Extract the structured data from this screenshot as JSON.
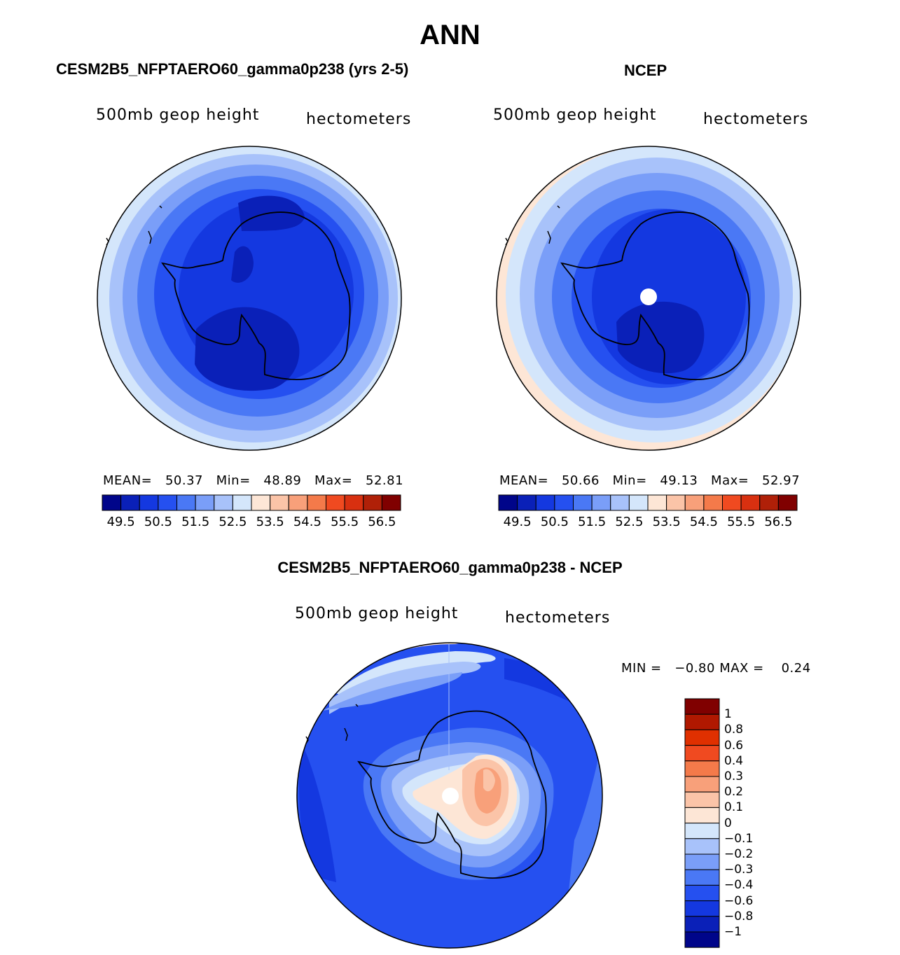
{
  "title": "ANN",
  "panels": [
    {
      "header": "CESM2B5_NFPTAERO60_gamma0p238 (yrs 2-5)",
      "variable": "500mb geop height",
      "units": "hectometers",
      "stats": {
        "mean_label": "MEAN=",
        "mean": "50.37",
        "min_label": "Min=",
        "min": "48.89",
        "max_label": "Max=",
        "max": "52.81"
      },
      "colorbar_ticks": [
        "49.5",
        "50.5",
        "51.5",
        "52.5",
        "53.5",
        "54.5",
        "55.5",
        "56.5"
      ]
    },
    {
      "header": "NCEP",
      "variable": "500mb geop height",
      "units": "hectometers",
      "stats": {
        "mean_label": "MEAN=",
        "mean": "50.66",
        "min_label": "Min=",
        "min": "49.13",
        "max_label": "Max=",
        "max": "52.97"
      },
      "colorbar_ticks": [
        "49.5",
        "50.5",
        "51.5",
        "52.5",
        "53.5",
        "54.5",
        "55.5",
        "56.5"
      ]
    }
  ],
  "difference": {
    "header": "CESM2B5_NFPTAERO60_gamma0p238 - NCEP",
    "variable": "500mb geop height",
    "units": "hectometers",
    "min_label": "MIN =",
    "min": "−0.80",
    "max_label": "MAX =",
    "max": "0.24",
    "colorbar_ticks": [
      "1",
      "0.8",
      "0.6",
      "0.4",
      "0.3",
      "0.2",
      "0.1",
      "0",
      "−0.1",
      "−0.2",
      "−0.3",
      "−0.4",
      "−0.6",
      "−0.8",
      "−1"
    ]
  },
  "colors": {
    "abs_scale": [
      "#00058a",
      "#0a20b8",
      "#1438e0",
      "#2550f0",
      "#4a78f5",
      "#7a9ef8",
      "#a8c2fa",
      "#d4e6fb",
      "#fde6d6",
      "#fbc4a8",
      "#f8a07a",
      "#f47a4a",
      "#f04a20",
      "#d83010",
      "#b02008",
      "#800000"
    ],
    "diff_scale": [
      "#800000",
      "#b01800",
      "#e03000",
      "#f04a20",
      "#f47a4a",
      "#f8a07a",
      "#fbc4a8",
      "#fde6d6",
      "#d4e6fb",
      "#a8c2fa",
      "#7a9ef8",
      "#4a78f5",
      "#2550f0",
      "#1438e0",
      "#0a20b8",
      "#00058a"
    ]
  }
}
